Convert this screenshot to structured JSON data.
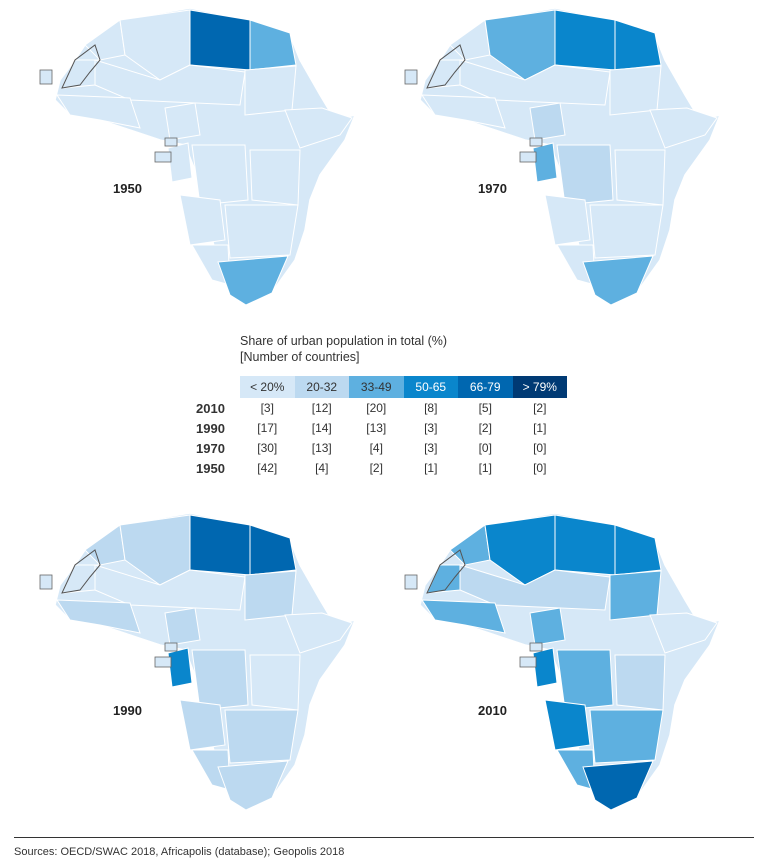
{
  "legend": {
    "title": "Share of urban population in total (%)",
    "subtitle": "[Number of countries]",
    "classes": [
      {
        "label": "< 20%",
        "color": "#d6e8f7"
      },
      {
        "label": "20-32",
        "color": "#bcd9f0"
      },
      {
        "label": "33-49",
        "color": "#5eb0e0"
      },
      {
        "label": "50-65",
        "color": "#0a86cc"
      },
      {
        "label": "66-79",
        "color": "#0067b0"
      },
      {
        "label": "> 79%",
        "color": "#003a74"
      }
    ],
    "rows": [
      {
        "year": "2010",
        "counts": [
          "[3]",
          "[12]",
          "[20]",
          "[8]",
          "[5]",
          "[2]"
        ]
      },
      {
        "year": "1990",
        "counts": [
          "[17]",
          "[14]",
          "[13]",
          "[3]",
          "[2]",
          "[1]"
        ]
      },
      {
        "year": "1970",
        "counts": [
          "[30]",
          "[13]",
          "[4]",
          "[3]",
          "[0]",
          "[0]"
        ]
      },
      {
        "year": "1950",
        "counts": [
          "[42]",
          "[4]",
          "[2]",
          "[1]",
          "[1]",
          "[0]"
        ]
      }
    ]
  },
  "maps": [
    {
      "year": "1950",
      "fills": {
        "libya": 4,
        "egypt": 2,
        "south_africa": 2
      }
    },
    {
      "year": "1970",
      "fills": {
        "algeria": 2,
        "libya": 3,
        "egypt": 3,
        "south_africa": 2,
        "congo": 2,
        "drc": 1,
        "nigeria": 1
      }
    },
    {
      "year": "1990",
      "fills": {
        "morocco": 1,
        "algeria": 1,
        "libya": 4,
        "egypt": 4,
        "west": 1,
        "nigeria": 1,
        "congo": 3,
        "drc": 1,
        "sudan": 1,
        "south_africa": 1,
        "namibia": 1,
        "angola": 1,
        "southern": 1
      }
    },
    {
      "year": "2010",
      "fills": {
        "morocco": 2,
        "algeria": 3,
        "libya": 3,
        "egypt": 3,
        "western_sahara": 2,
        "west": 2,
        "nigeria": 2,
        "sudan": 2,
        "congo": 3,
        "drc": 2,
        "angola": 3,
        "south_africa": 4,
        "namibia": 2,
        "southern": 2,
        "east": 1,
        "sahel": 1
      }
    }
  ],
  "source": "Sources: OECD/SWAC 2018, Africapolis (database); Geopolis 2018"
}
